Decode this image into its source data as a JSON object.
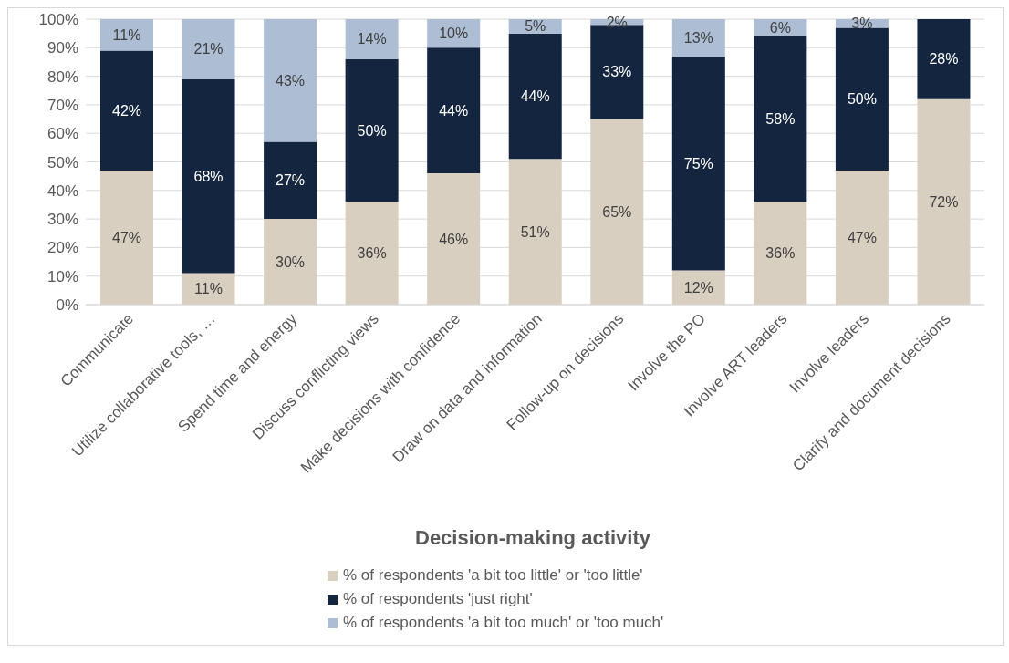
{
  "chart_data": {
    "type": "bar",
    "stacked": true,
    "xlabel": "Decision-making activity",
    "categories": [
      "Communicate",
      "Utilize collaborative tools, …",
      "Spend time and energy",
      "Discuss conflicting views",
      "Make decisions with confidence",
      "Draw on data and information",
      "Follow-up on decisions",
      "Involve the PO",
      "Involve ART leaders",
      "Involve leaders",
      "Clarify and document decisions"
    ],
    "series": [
      {
        "name": "% of respondents 'a bit too little' or 'too little'",
        "color": "#d9cfc1",
        "values": [
          47,
          11,
          30,
          36,
          46,
          51,
          65,
          12,
          36,
          47,
          72
        ],
        "value_labels": [
          "47%",
          "11%",
          "30%",
          "36%",
          "46%",
          "51%",
          "65%",
          "12%",
          "36%",
          "47%",
          "72%"
        ]
      },
      {
        "name": "% of respondents 'just right'",
        "color": "#14253f",
        "values": [
          42,
          68,
          27,
          50,
          44,
          44,
          33,
          75,
          58,
          50,
          28
        ],
        "value_labels": [
          "42%",
          "68%",
          "27%",
          "50%",
          "44%",
          "44%",
          "33%",
          "75%",
          "58%",
          "50%",
          "28%"
        ]
      },
      {
        "name": "% of respondents 'a bit too much' or 'too much'",
        "color": "#adbdd4",
        "values": [
          11,
          21,
          43,
          14,
          10,
          5,
          2,
          13,
          6,
          3,
          null
        ],
        "value_labels": [
          "11%",
          "21%",
          "43%",
          "14%",
          "10%",
          "5%",
          "2%",
          "13%",
          "6%",
          "3%",
          null
        ]
      }
    ],
    "ylim": [
      0,
      100
    ],
    "yticks": [
      {
        "value": 0,
        "label": "0%"
      },
      {
        "value": 10,
        "label": "10%"
      },
      {
        "value": 20,
        "label": "20%"
      },
      {
        "value": 30,
        "label": "30%"
      },
      {
        "value": 40,
        "label": "40%"
      },
      {
        "value": 50,
        "label": "50%"
      },
      {
        "value": 60,
        "label": "60%"
      },
      {
        "value": 70,
        "label": "70%"
      },
      {
        "value": 80,
        "label": "80%"
      },
      {
        "value": 90,
        "label": "90%"
      },
      {
        "value": 100,
        "label": "100%"
      }
    ],
    "grid": "y",
    "legend": "bottom"
  }
}
